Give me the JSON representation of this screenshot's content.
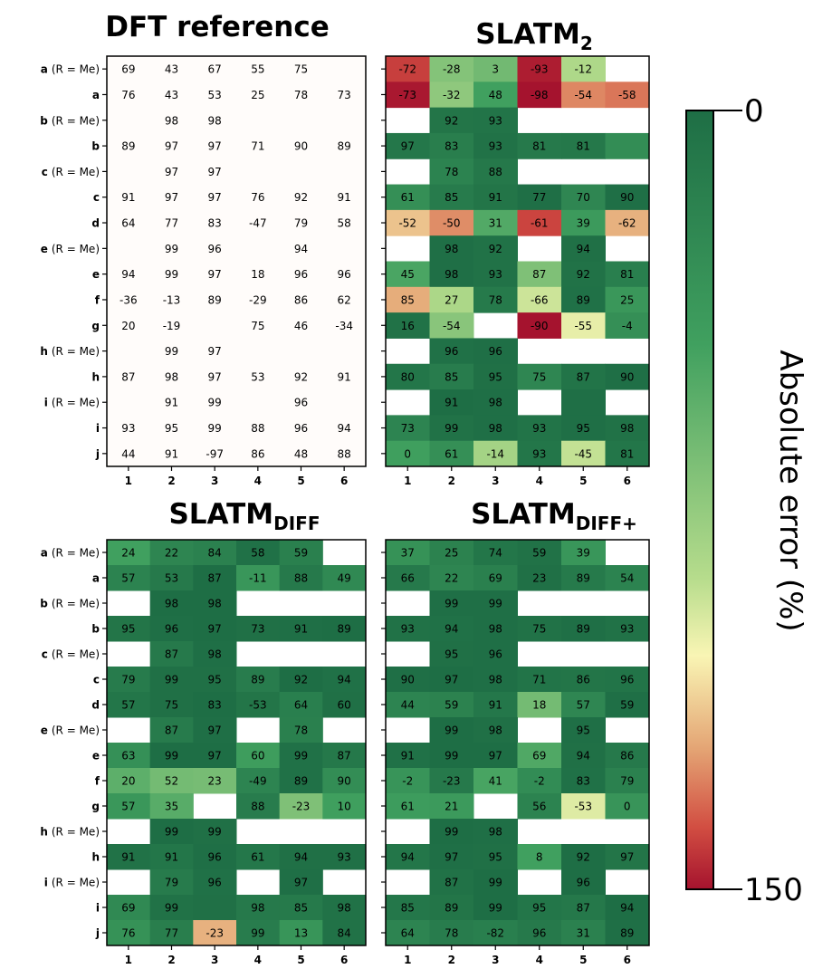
{
  "chart_data": [
    {
      "type": "heatmap",
      "title": "DFT reference",
      "title_sub": "",
      "rows": [
        [
          "a",
          "(R = Me)"
        ],
        [
          "a",
          ""
        ],
        [
          "b",
          "(R = Me)"
        ],
        [
          "b",
          ""
        ],
        [
          "c",
          "(R = Me)"
        ],
        [
          "c",
          ""
        ],
        [
          "d",
          ""
        ],
        [
          "e",
          "(R = Me)"
        ],
        [
          "e",
          ""
        ],
        [
          "f",
          ""
        ],
        [
          "g",
          ""
        ],
        [
          "h",
          "(R = Me)"
        ],
        [
          "h",
          ""
        ],
        [
          "i",
          "(R = Me)"
        ],
        [
          "i",
          ""
        ],
        [
          "j",
          ""
        ]
      ],
      "columns": [
        "1",
        "2",
        "3",
        "4",
        "5",
        "6"
      ],
      "values": [
        [
          69,
          43,
          67,
          55,
          75,
          null
        ],
        [
          76,
          43,
          53,
          25,
          78,
          73
        ],
        [
          null,
          98,
          98,
          null,
          null,
          null
        ],
        [
          89,
          97,
          97,
          71,
          90,
          89
        ],
        [
          null,
          97,
          97,
          null,
          null,
          null
        ],
        [
          91,
          97,
          97,
          76,
          92,
          91
        ],
        [
          64,
          77,
          83,
          -47,
          79,
          58
        ],
        [
          null,
          99,
          96,
          null,
          94,
          null
        ],
        [
          94,
          99,
          97,
          18,
          96,
          96
        ],
        [
          -36,
          -13,
          89,
          -29,
          86,
          62
        ],
        [
          20,
          -19,
          null,
          75,
          46,
          -34
        ],
        [
          null,
          99,
          97,
          null,
          null,
          null
        ],
        [
          87,
          98,
          97,
          53,
          92,
          91
        ],
        [
          null,
          91,
          99,
          null,
          96,
          null
        ],
        [
          93,
          95,
          99,
          88,
          96,
          94
        ],
        [
          44,
          91,
          -97,
          86,
          48,
          88
        ]
      ],
      "colored": false
    },
    {
      "type": "heatmap",
      "title": "SLATM",
      "title_sub": "2",
      "rows": [
        [
          "a",
          "(R = Me)"
        ],
        [
          "a",
          ""
        ],
        [
          "b",
          "(R = Me)"
        ],
        [
          "b",
          ""
        ],
        [
          "c",
          "(R = Me)"
        ],
        [
          "c",
          ""
        ],
        [
          "d",
          ""
        ],
        [
          "e",
          "(R = Me)"
        ],
        [
          "e",
          ""
        ],
        [
          "f",
          ""
        ],
        [
          "g",
          ""
        ],
        [
          "h",
          "(R = Me)"
        ],
        [
          "h",
          ""
        ],
        [
          "i",
          "(R = Me)"
        ],
        [
          "i",
          ""
        ],
        [
          "j",
          ""
        ]
      ],
      "columns": [
        "1",
        "2",
        "3",
        "4",
        "5",
        "6"
      ],
      "values": [
        [
          -72,
          -28,
          3,
          -93,
          -12,
          null
        ],
        [
          -73,
          -32,
          48,
          -98,
          -54,
          -58
        ],
        [
          null,
          92,
          93,
          null,
          null,
          null
        ],
        [
          97,
          83,
          93,
          81,
          81,
          ""
        ],
        [
          null,
          78,
          88,
          null,
          null,
          null
        ],
        [
          61,
          85,
          91,
          77,
          70,
          90
        ],
        [
          -52,
          -50,
          31,
          -61,
          39,
          -62
        ],
        [
          null,
          98,
          92,
          null,
          94,
          null
        ],
        [
          45,
          98,
          93,
          87,
          92,
          81
        ],
        [
          85,
          27,
          78,
          -66,
          89,
          25
        ],
        [
          16,
          -54,
          null,
          -90,
          -55,
          -4
        ],
        [
          null,
          96,
          96,
          null,
          null,
          null
        ],
        [
          80,
          85,
          95,
          75,
          87,
          90
        ],
        [
          null,
          91,
          98,
          null,
          "",
          null
        ],
        [
          73,
          99,
          98,
          93,
          95,
          98
        ],
        [
          0,
          61,
          -14,
          93,
          -45,
          81
        ]
      ],
      "errors": [
        [
          141,
          71,
          64,
          148,
          87,
          null
        ],
        [
          149,
          75,
          45,
          150,
          128,
          131
        ],
        [
          null,
          6,
          5,
          null,
          null,
          null
        ],
        [
          8,
          14,
          4,
          10,
          9,
          28
        ],
        [
          null,
          19,
          9,
          null,
          null,
          null
        ],
        [
          30,
          12,
          6,
          1,
          22,
          1
        ],
        [
          116,
          127,
          52,
          140,
          40,
          120
        ],
        [
          null,
          1,
          4,
          null,
          2,
          null
        ],
        [
          49,
          1,
          4,
          69,
          4,
          15
        ],
        [
          121,
          86,
          11,
          95,
          3,
          37
        ],
        [
          4,
          73,
          null,
          165,
          101,
          30
        ],
        [
          null,
          3,
          1,
          null,
          null,
          null
        ],
        [
          7,
          13,
          2,
          22,
          5,
          1
        ],
        [
          null,
          0,
          1,
          null,
          1,
          null
        ],
        [
          20,
          4,
          1,
          5,
          1,
          4
        ],
        [
          44,
          30,
          83,
          7,
          93,
          7
        ]
      ],
      "colored": true
    },
    {
      "type": "heatmap",
      "title": "SLATM",
      "title_sub": "DIFF",
      "rows": [
        [
          "a",
          "(R = Me)"
        ],
        [
          "a",
          ""
        ],
        [
          "b",
          "(R = Me)"
        ],
        [
          "b",
          ""
        ],
        [
          "c",
          "(R = Me)"
        ],
        [
          "c",
          ""
        ],
        [
          "d",
          ""
        ],
        [
          "e",
          "(R = Me)"
        ],
        [
          "e",
          ""
        ],
        [
          "f",
          ""
        ],
        [
          "g",
          ""
        ],
        [
          "h",
          "(R = Me)"
        ],
        [
          "h",
          ""
        ],
        [
          "i",
          "(R = Me)"
        ],
        [
          "i",
          ""
        ],
        [
          "j",
          ""
        ]
      ],
      "columns": [
        "1",
        "2",
        "3",
        "4",
        "5",
        "6"
      ],
      "values": [
        [
          24,
          22,
          84,
          58,
          59,
          null
        ],
        [
          57,
          53,
          87,
          -11,
          88,
          49
        ],
        [
          null,
          98,
          98,
          null,
          null,
          null
        ],
        [
          95,
          96,
          97,
          73,
          91,
          89
        ],
        [
          null,
          87,
          98,
          null,
          null,
          null
        ],
        [
          79,
          99,
          95,
          89,
          92,
          94
        ],
        [
          57,
          75,
          83,
          -53,
          64,
          60
        ],
        [
          null,
          87,
          97,
          null,
          78,
          null
        ],
        [
          63,
          99,
          97,
          60,
          99,
          87
        ],
        [
          20,
          52,
          23,
          -49,
          89,
          90
        ],
        [
          57,
          35,
          null,
          88,
          -23,
          10
        ],
        [
          null,
          99,
          99,
          null,
          null,
          null
        ],
        [
          91,
          91,
          96,
          61,
          94,
          93
        ],
        [
          null,
          79,
          96,
          null,
          97,
          null
        ],
        [
          69,
          99,
          null,
          98,
          85,
          98
        ],
        [
          76,
          77,
          -23,
          99,
          13,
          84
        ]
      ],
      "errors": [
        [
          45,
          21,
          17,
          3,
          16,
          null
        ],
        [
          19,
          10,
          0,
          36,
          10,
          24
        ],
        [
          null,
          0,
          0,
          null,
          null,
          null
        ],
        [
          6,
          1,
          0,
          2,
          1,
          0
        ],
        [
          null,
          10,
          1,
          null,
          null,
          null
        ],
        [
          12,
          2,
          2,
          13,
          0,
          3
        ],
        [
          7,
          2,
          0,
          6,
          15,
          2
        ],
        [
          null,
          12,
          1,
          null,
          16,
          null
        ],
        [
          31,
          0,
          0,
          42,
          3,
          9
        ],
        [
          56,
          65,
          66,
          20,
          3,
          28
        ],
        [
          37,
          54,
          null,
          13,
          69,
          44
        ],
        [
          null,
          0,
          2,
          null,
          null,
          null
        ],
        [
          4,
          7,
          1,
          8,
          2,
          2
        ],
        [
          null,
          12,
          3,
          null,
          1,
          null
        ],
        [
          24,
          4,
          2,
          10,
          11,
          4
        ],
        [
          32,
          14,
          120,
          13,
          35,
          4
        ]
      ],
      "colored": true
    },
    {
      "type": "heatmap",
      "title": "SLATM",
      "title_sub": "DIFF+",
      "rows": [
        [
          "a",
          "(R = Me)"
        ],
        [
          "a",
          ""
        ],
        [
          "b",
          "(R = Me)"
        ],
        [
          "b",
          ""
        ],
        [
          "c",
          "(R = Me)"
        ],
        [
          "c",
          ""
        ],
        [
          "d",
          ""
        ],
        [
          "e",
          "(R = Me)"
        ],
        [
          "e",
          ""
        ],
        [
          "f",
          ""
        ],
        [
          "g",
          ""
        ],
        [
          "h",
          "(R = Me)"
        ],
        [
          "h",
          ""
        ],
        [
          "i",
          "(R = Me)"
        ],
        [
          "i",
          ""
        ],
        [
          "j",
          ""
        ]
      ],
      "columns": [
        "1",
        "2",
        "3",
        "4",
        "5",
        "6"
      ],
      "values": [
        [
          37,
          25,
          74,
          59,
          39,
          null
        ],
        [
          66,
          22,
          69,
          23,
          89,
          54
        ],
        [
          null,
          99,
          99,
          null,
          null,
          null
        ],
        [
          93,
          94,
          98,
          75,
          89,
          93
        ],
        [
          null,
          95,
          96,
          null,
          null,
          null
        ],
        [
          90,
          97,
          98,
          71,
          86,
          96
        ],
        [
          44,
          59,
          91,
          18,
          57,
          59
        ],
        [
          null,
          99,
          98,
          null,
          95,
          null
        ],
        [
          91,
          99,
          97,
          69,
          94,
          86
        ],
        [
          -2,
          -23,
          41,
          -2,
          83,
          79
        ],
        [
          61,
          21,
          null,
          56,
          -53,
          0
        ],
        [
          null,
          99,
          98,
          null,
          null,
          null
        ],
        [
          94,
          97,
          95,
          8,
          92,
          97
        ],
        [
          null,
          87,
          99,
          null,
          96,
          null
        ],
        [
          85,
          89,
          99,
          95,
          87,
          94
        ],
        [
          64,
          78,
          -82,
          96,
          31,
          89
        ]
      ],
      "errors": [
        [
          32,
          18,
          7,
          4,
          36,
          null
        ],
        [
          10,
          21,
          16,
          2,
          11,
          19
        ],
        [
          null,
          1,
          1,
          null,
          null,
          null
        ],
        [
          4,
          3,
          1,
          4,
          1,
          4
        ],
        [
          null,
          2,
          1,
          null,
          null,
          null
        ],
        [
          1,
          0,
          1,
          5,
          6,
          5
        ],
        [
          20,
          18,
          8,
          65,
          22,
          1
        ],
        [
          null,
          0,
          2,
          null,
          1,
          null
        ],
        [
          3,
          0,
          0,
          51,
          2,
          10
        ],
        [
          34,
          10,
          48,
          27,
          3,
          17
        ],
        [
          41,
          40,
          null,
          19,
          99,
          34
        ],
        [
          null,
          0,
          1,
          null,
          null,
          null
        ],
        [
          7,
          1,
          2,
          45,
          0,
          6
        ],
        [
          null,
          4,
          0,
          null,
          0,
          null
        ],
        [
          8,
          6,
          0,
          7,
          9,
          0
        ],
        [
          20,
          13,
          15,
          10,
          17,
          1
        ]
      ],
      "colored": true
    }
  ],
  "colorbar": {
    "label": "Absolute  error (%)",
    "min_label": "0",
    "max_label": "150",
    "range": [
      0,
      150
    ],
    "low_color": "#1e6e45",
    "mid_color": "#f9f5b4",
    "high_color": "#a5132e"
  }
}
